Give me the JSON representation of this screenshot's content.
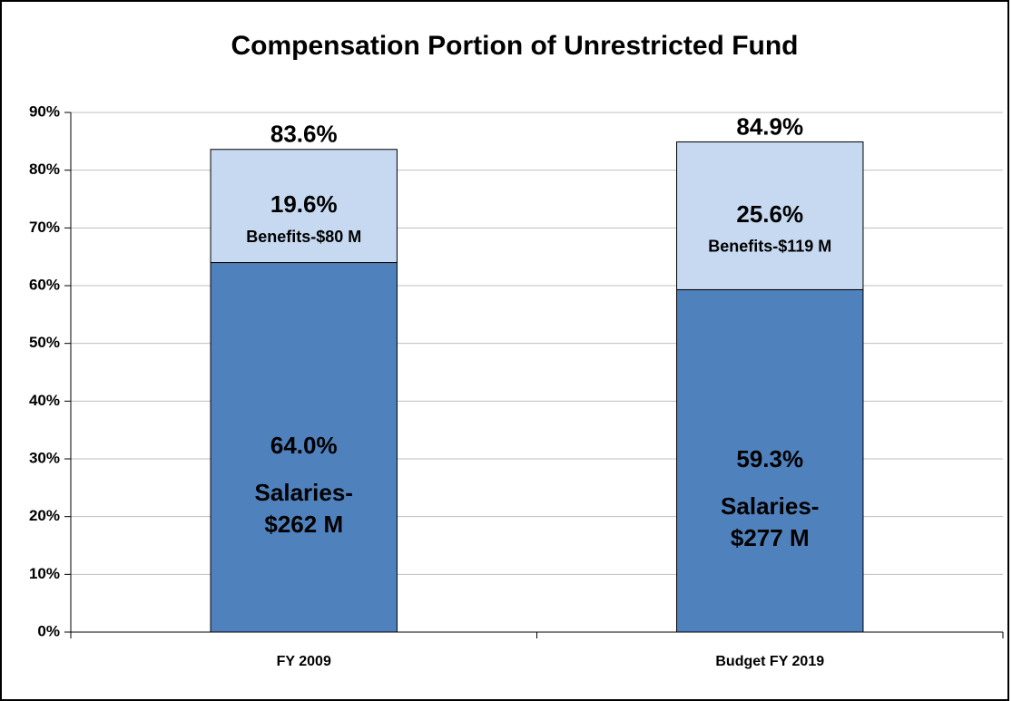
{
  "chart_data": {
    "type": "stacked_bar",
    "title": "Compensation Portion of Unrestricted Fund",
    "categories": [
      "FY 2009",
      "Budget FY 2019"
    ],
    "series": [
      {
        "name": "Salaries",
        "color": "#4f81bd",
        "values": [
          64.0,
          59.3
        ],
        "value_labels": [
          "64.0%",
          "59.3%"
        ],
        "annotations": [
          [
            "Salaries-",
            "$262 M"
          ],
          [
            "Salaries-",
            "$277 M"
          ]
        ]
      },
      {
        "name": "Benefits",
        "color": "#c6d9f1",
        "values": [
          19.6,
          25.6
        ],
        "value_labels": [
          "19.6%",
          "25.6%"
        ],
        "annotations": [
          [
            "Benefits-$80 M"
          ],
          [
            "Benefits-$119 M"
          ]
        ]
      }
    ],
    "totals": [
      83.6,
      84.9
    ],
    "total_labels": [
      "83.6%",
      "84.9%"
    ],
    "ylim": [
      0,
      90
    ],
    "yticks": [
      {
        "value": 0,
        "label": "0%"
      },
      {
        "value": 10,
        "label": "10%"
      },
      {
        "value": 20,
        "label": "20%"
      },
      {
        "value": 30,
        "label": "30%"
      },
      {
        "value": 40,
        "label": "40%"
      },
      {
        "value": 50,
        "label": "50%"
      },
      {
        "value": 60,
        "label": "60%"
      },
      {
        "value": 70,
        "label": "70%"
      },
      {
        "value": 80,
        "label": "80%"
      },
      {
        "value": 90,
        "label": "90%"
      }
    ],
    "grid": true
  }
}
